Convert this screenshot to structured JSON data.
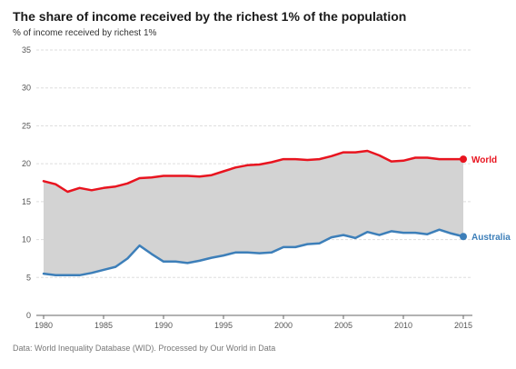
{
  "title": "The share of income received by the richest 1% of the population",
  "subtitle": "% of income received by richest 1%",
  "source": "Data: World Inequality Database (WID). Processed by Our World in Data",
  "colors": {
    "World": "#e8141f",
    "Australia": "#3d7fb9",
    "area": "#d3d3d3",
    "grid": "#dddddd"
  },
  "chart_data": {
    "type": "line",
    "title": "The share of income received by the richest 1% of the population",
    "ylabel": "% of income received by richest 1%",
    "xlabel": "",
    "xlim": [
      1980,
      2015
    ],
    "ylim": [
      0,
      35
    ],
    "x_ticks": [
      1980,
      1985,
      1990,
      1995,
      2000,
      2005,
      2010,
      2015
    ],
    "y_ticks": [
      0,
      5,
      10,
      15,
      20,
      25,
      30,
      35
    ],
    "grid": true,
    "legend": "end-of-line labels",
    "shaded_between_series": true,
    "x": [
      1980,
      1981,
      1982,
      1983,
      1984,
      1985,
      1986,
      1987,
      1988,
      1989,
      1990,
      1991,
      1992,
      1993,
      1994,
      1995,
      1996,
      1997,
      1998,
      1999,
      2000,
      2001,
      2002,
      2003,
      2004,
      2005,
      2006,
      2007,
      2008,
      2009,
      2010,
      2011,
      2012,
      2013,
      2014,
      2015
    ],
    "series": [
      {
        "name": "World",
        "values": [
          17.7,
          17.3,
          16.3,
          16.8,
          16.5,
          16.8,
          17.0,
          17.4,
          18.1,
          18.2,
          18.4,
          18.4,
          18.4,
          18.3,
          18.5,
          19.0,
          19.5,
          19.8,
          19.9,
          20.2,
          20.6,
          20.6,
          20.5,
          20.6,
          21.0,
          21.5,
          21.5,
          21.7,
          21.1,
          20.3,
          20.4,
          20.8,
          20.8,
          20.6,
          20.6,
          20.6
        ]
      },
      {
        "name": "Australia",
        "values": [
          5.5,
          5.3,
          5.3,
          5.3,
          5.6,
          6.0,
          6.4,
          7.5,
          9.2,
          8.1,
          7.1,
          7.1,
          6.9,
          7.2,
          7.6,
          7.9,
          8.3,
          8.3,
          8.2,
          8.3,
          9.0,
          9.0,
          9.4,
          9.5,
          10.3,
          10.6,
          10.2,
          11.0,
          10.6,
          11.1,
          10.9,
          10.9,
          10.7,
          11.3,
          10.8,
          10.4
        ]
      }
    ]
  }
}
